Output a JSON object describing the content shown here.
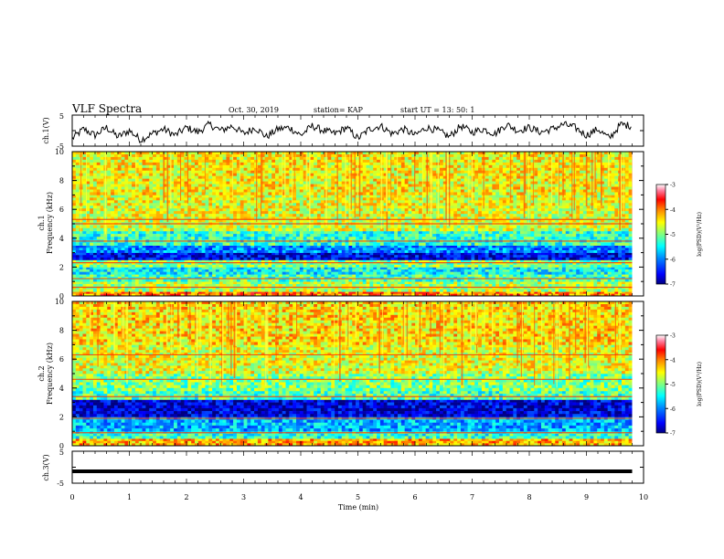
{
  "header": {
    "title": "VLF Spectra",
    "date": "Oct. 30, 2019",
    "station": "station= KAP",
    "start": "start UT =  13: 50: 1"
  },
  "colorbar": {
    "label": "log(PSD)(V²/Hz)",
    "ticks": [
      "-3",
      "-4",
      "-5",
      "-6",
      "-7"
    ],
    "colormap": [
      "#000080",
      "#0000ff",
      "#0080ff",
      "#00ffff",
      "#80ff80",
      "#ffff00",
      "#ff8000",
      "#ff0000",
      "#ff80a0",
      "#ffffff"
    ]
  },
  "chart_data": [
    {
      "type": "line",
      "panel": "ch1_waveform",
      "ylabel": "ch.1(V)",
      "ylim": [
        -5,
        5
      ],
      "yticks": [
        "5",
        "-5"
      ],
      "x": [
        0.0,
        0.2,
        0.4,
        0.6,
        0.8,
        1.0,
        1.2,
        1.4,
        1.6,
        1.8,
        2.0,
        2.2,
        2.4,
        2.6,
        2.8,
        3.0,
        3.2,
        3.4,
        3.6,
        3.8,
        4.0,
        4.2,
        4.4,
        4.6,
        4.8,
        5.0,
        5.2,
        5.4,
        5.6,
        5.8,
        6.0,
        6.2,
        6.4,
        6.6,
        6.8,
        7.0,
        7.2,
        7.4,
        7.6,
        7.8,
        8.0,
        8.2,
        8.4,
        8.6,
        8.8,
        9.0,
        9.2,
        9.4,
        9.6,
        9.8
      ],
      "y": [
        -2.5,
        0.5,
        -1.5,
        1.0,
        -2.0,
        0.0,
        -3.0,
        -1.0,
        0.5,
        -1.5,
        1.0,
        -0.5,
        2.0,
        0.0,
        1.5,
        -1.0,
        1.0,
        -2.0,
        0.5,
        1.0,
        -1.5,
        1.5,
        0.0,
        -1.0,
        1.0,
        -2.5,
        0.5,
        1.5,
        -1.0,
        0.5,
        -1.5,
        1.0,
        0.0,
        -2.0,
        1.5,
        -0.5,
        0.5,
        -1.0,
        2.0,
        0.0,
        1.0,
        -0.5,
        0.5,
        2.0,
        1.0,
        -1.5,
        0.5,
        -2.5,
        2.0,
        1.5
      ]
    },
    {
      "type": "heatmap",
      "panel": "ch1_spectrogram",
      "ylabel": "ch.1 Frequency (kHz)",
      "ylim": [
        0,
        10
      ],
      "xlim": [
        0,
        10
      ],
      "yticks": [
        "0",
        "2",
        "4",
        "6",
        "8",
        "10"
      ],
      "zlim": [
        -7,
        -3
      ],
      "frequency_bands": [
        {
          "f": [
            0.0,
            0.3
          ],
          "log_psd": -4.0
        },
        {
          "f": [
            0.3,
            1.0
          ],
          "log_psd": -4.8
        },
        {
          "f": [
            1.0,
            1.5
          ],
          "log_psd": -5.2
        },
        {
          "f": [
            1.5,
            2.0
          ],
          "log_psd": -5.5
        },
        {
          "f": [
            2.0,
            2.5
          ],
          "log_psd": -5.0
        },
        {
          "f": [
            2.5,
            3.0
          ],
          "log_psd": -6.6
        },
        {
          "f": [
            3.0,
            3.5
          ],
          "log_psd": -6.0
        },
        {
          "f": [
            3.5,
            4.5
          ],
          "log_psd": -5.3
        },
        {
          "f": [
            4.5,
            5.5
          ],
          "log_psd": -4.7
        },
        {
          "f": [
            5.5,
            7.0
          ],
          "log_psd": -4.6
        },
        {
          "f": [
            7.0,
            10.0
          ],
          "log_psd": -4.5
        }
      ],
      "spectral_lines_khz": [
        5.3,
        5.0,
        3.8,
        2.3,
        1.2,
        0.6
      ]
    },
    {
      "type": "heatmap",
      "panel": "ch2_spectrogram",
      "ylabel": "ch.2 Frequency (kHz)",
      "ylim": [
        0,
        10
      ],
      "xlim": [
        0,
        10
      ],
      "yticks": [
        "0",
        "2",
        "4",
        "6",
        "8",
        "10"
      ],
      "zlim": [
        -7,
        -3
      ],
      "frequency_bands": [
        {
          "f": [
            0.0,
            0.5
          ],
          "log_psd": -4.2
        },
        {
          "f": [
            0.5,
            1.0
          ],
          "log_psd": -5.3
        },
        {
          "f": [
            1.0,
            2.0
          ],
          "log_psd": -5.8
        },
        {
          "f": [
            2.0,
            3.2
          ],
          "log_psd": -6.7
        },
        {
          "f": [
            3.2,
            3.8
          ],
          "log_psd": -5.2
        },
        {
          "f": [
            3.8,
            5.0
          ],
          "log_psd": -5.0
        },
        {
          "f": [
            5.0,
            7.0
          ],
          "log_psd": -4.6
        },
        {
          "f": [
            7.0,
            10.0
          ],
          "log_psd": -4.4
        }
      ],
      "spectral_lines_khz": [
        6.3,
        4.6,
        3.4,
        1.9,
        0.9
      ]
    },
    {
      "type": "line",
      "panel": "ch3_waveform",
      "ylabel": "ch.3(V)",
      "ylim": [
        -5,
        5
      ],
      "yticks": [
        "5",
        "-5"
      ],
      "xlabel": "Time (min)",
      "xlim": [
        0,
        10
      ],
      "xticks": [
        "0",
        "1",
        "2",
        "3",
        "4",
        "5",
        "6",
        "7",
        "8",
        "9",
        "10"
      ],
      "x": [
        0.0,
        9.8
      ],
      "y": [
        -1.3,
        -1.3
      ]
    }
  ]
}
